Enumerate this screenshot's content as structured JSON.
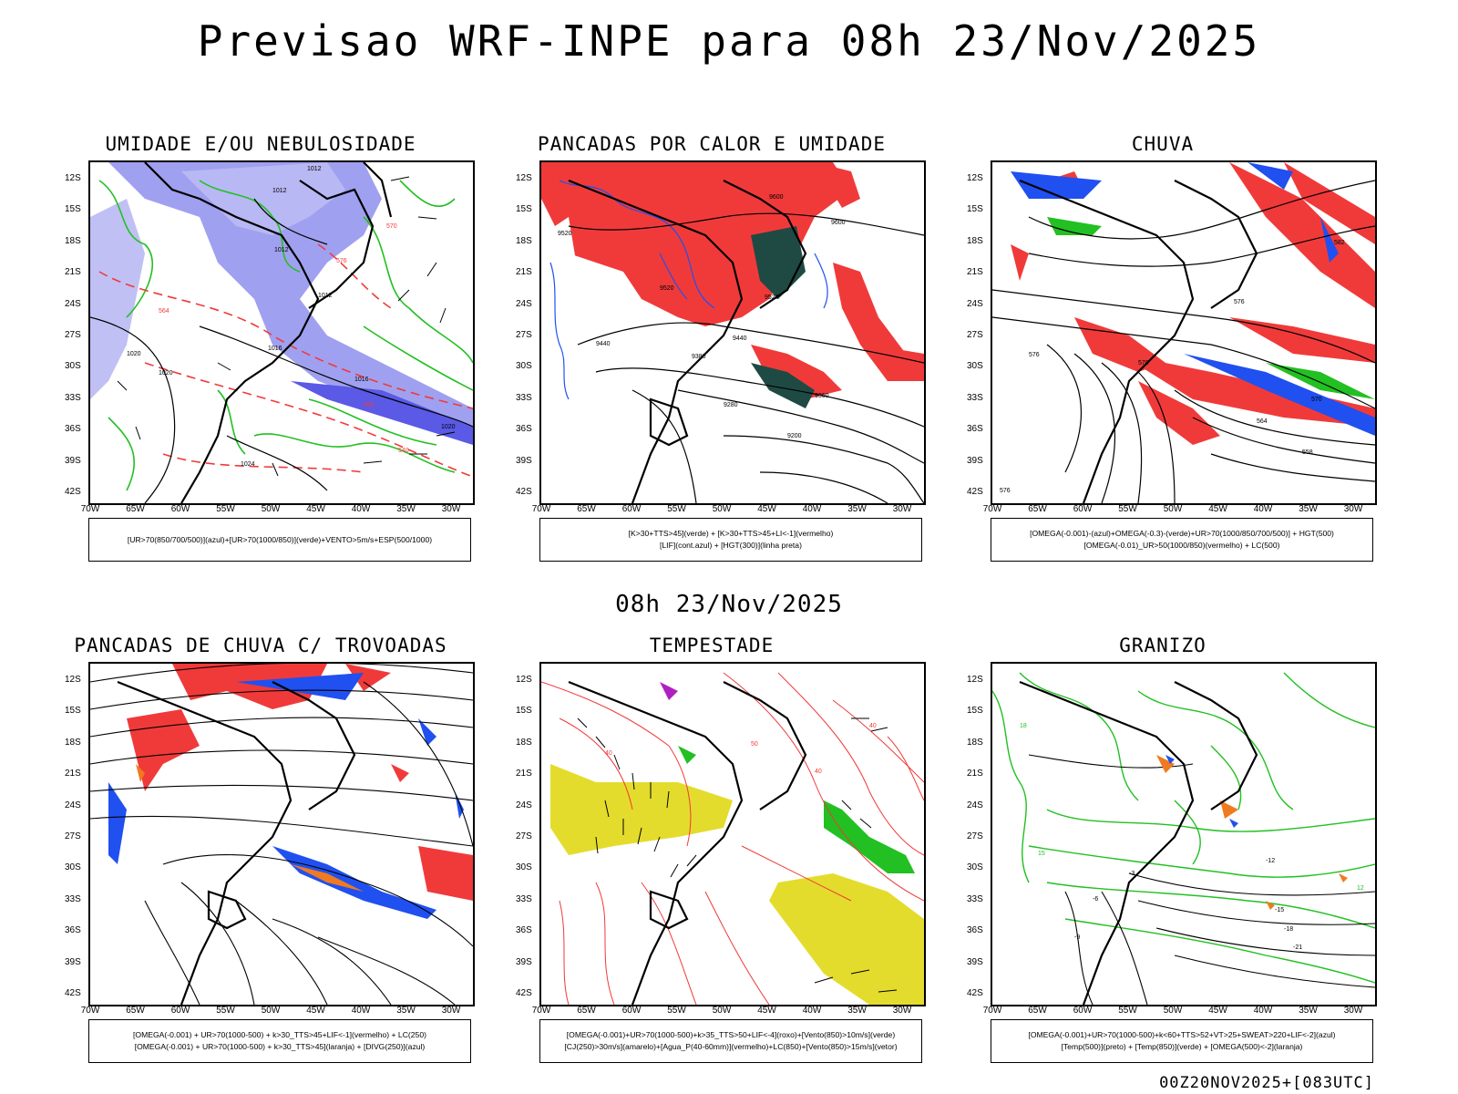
{
  "header": {
    "title": "Previsao WRF-INPE  para 08h 23/Nov/2025"
  },
  "subtitle": "08h 23/Nov/2025",
  "footer": "00Z20NOV2025+[083UTC]",
  "axes": {
    "lat_labels": [
      "12S",
      "15S",
      "18S",
      "21S",
      "24S",
      "27S",
      "30S",
      "33S",
      "36S",
      "39S",
      "42S"
    ],
    "lon_labels": [
      "70W",
      "65W",
      "60W",
      "55W",
      "50W",
      "45W",
      "40W",
      "35W",
      "30W"
    ]
  },
  "panels": [
    {
      "title": "UMIDADE E/OU NEBULOSIDADE",
      "legend": [
        "[UR>70(850/700/500)](azul)+[UR>70(1000/850)](verde)+VENTO>5m/s+ESP(500/1000)"
      ],
      "contour_labels": [
        "1012",
        "1012",
        "1012",
        "1012",
        "1016",
        "1016",
        "1020",
        "1020",
        "1020",
        "1024",
        "570",
        "576",
        "582",
        "564",
        "540"
      ]
    },
    {
      "title": "PANCADAS POR CALOR E UMIDADE",
      "legend": [
        "[K>30+TTS>45](verde) + [K>30+TTS>45+LI<-1](vermelho)",
        "[LIF](cont.azul) + [HGT(300)](linha preta)"
      ],
      "contour_labels": [
        "9600",
        "9600",
        "9520",
        "9520",
        "9440",
        "9440",
        "9360",
        "9280",
        "9200",
        "9520",
        "9380"
      ]
    },
    {
      "title": "CHUVA",
      "legend": [
        "[OMEGA(-0.001)-(azul)+OMEGA(-0.3)-(verde)+UR>70(1000/850/700/500)] + HGT(500)",
        "[OMEGA(-0.01)_UR>50(1000/850)(vermelho) + LC(500)"
      ],
      "contour_labels": [
        "582",
        "576",
        "576",
        "570",
        "570",
        "564",
        "558",
        "576"
      ]
    },
    {
      "title": "PANCADAS DE CHUVA C/ TROVOADAS",
      "legend": [
        "[OMEGA(-0.001) + UR>70(1000-500) + k>30_TTS>45+LIF<-1](vermelho) + LC(250)",
        "[OMEGA(-0.001) + UR>70(1000-500) + k>30_TTS>45](laranja) + [DIVG(250)](azul)"
      ],
      "contour_labels": []
    },
    {
      "title": "TEMPESTADE",
      "legend": [
        "[OMEGA(-0.001)+UR>70(1000-500)+k>35_TTS>50+LIF<-4](roxo)+[Vento(850)>10m/s](verde)",
        "[CJ(250)>30m/s](amarelo)+[Agua_P(40-60mm)](vermelho)+LC(850)+[Vento(850)>15m/s](vetor)"
      ],
      "contour_labels": [
        "40",
        "40",
        "40",
        "50"
      ]
    },
    {
      "title": "GRANIZO",
      "legend": [
        "[OMEGA(-0.001)+UR>70(1000-500)+k<60+TTS>52+VT>25+SWEAT>220+LIF<-2](azul)",
        "[Temp(500)](preto) + [Temp(850)](verde) + [OMEGA(500)<-2](laranja)"
      ],
      "contour_labels": [
        "-12",
        "-15",
        "-18",
        "-21",
        "-9",
        "-6",
        "-3",
        "18",
        "15",
        "12"
      ]
    }
  ],
  "colors": {
    "blue_shade": "#a0a0f0",
    "green": "#22c022",
    "red": "#f03a3a",
    "dark_teal": "#1f4a44",
    "yellow": "#e4dc2c",
    "orange": "#f07a20",
    "blue": "#2050f0",
    "purple": "#b020c0"
  }
}
